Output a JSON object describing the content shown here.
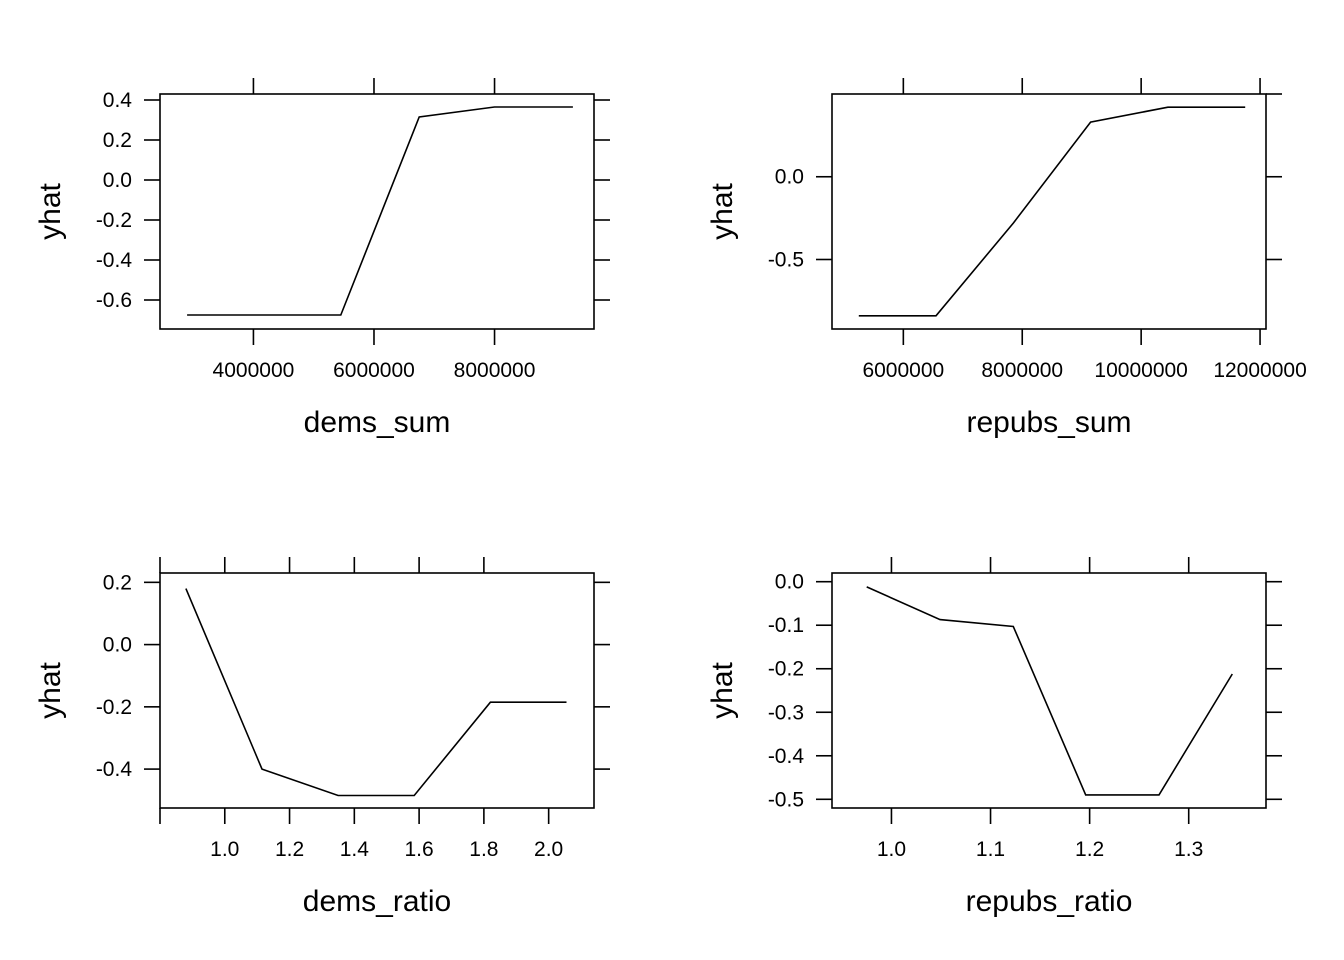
{
  "chart_data": [
    {
      "type": "line",
      "xlabel": "dems_sum",
      "ylabel": "yhat",
      "x": [
        2900000,
        4150000,
        5450000,
        6750000,
        8000000,
        9300000
      ],
      "y": [
        -0.675,
        -0.675,
        -0.675,
        0.315,
        0.365,
        0.365
      ],
      "xlim": [
        2450000,
        9650000
      ],
      "ylim": [
        -0.745,
        0.43
      ],
      "xticks": [
        4000000,
        6000000,
        8000000
      ],
      "xtick_labels": [
        "4000000",
        "6000000",
        "8000000"
      ],
      "xticks_top": [
        4000000,
        6000000,
        8000000
      ],
      "yticks": [
        -0.6,
        -0.4,
        -0.2,
        0.0,
        0.2,
        0.4
      ],
      "ytick_labels": [
        "-0.6",
        "-0.4",
        "-0.2",
        "0.0",
        "0.2",
        "0.4"
      ],
      "grid": false
    },
    {
      "type": "line",
      "xlabel": "repubs_sum",
      "ylabel": "yhat",
      "x": [
        5250000,
        6550000,
        7850000,
        9150000,
        10450000,
        11750000
      ],
      "y": [
        -0.84,
        -0.84,
        -0.28,
        0.33,
        0.42,
        0.42
      ],
      "xlim": [
        4800000,
        12100000
      ],
      "ylim": [
        -0.92,
        0.5
      ],
      "xticks": [
        6000000,
        8000000,
        10000000,
        12000000
      ],
      "xtick_labels": [
        "6000000",
        "8000000",
        "10000000",
        "12000000"
      ],
      "xticks_top": [
        6000000,
        8000000,
        10000000,
        12000000
      ],
      "yticks": [
        -0.5,
        0.0
      ],
      "ytick_labels": [
        "-0.5",
        "0.0"
      ],
      "yticks_right": [
        -0.5,
        0.0,
        0.5
      ],
      "grid": false
    },
    {
      "type": "line",
      "xlabel": "dems_ratio",
      "ylabel": "yhat",
      "x": [
        0.88,
        1.115,
        1.35,
        1.585,
        1.82,
        2.055
      ],
      "y": [
        0.18,
        -0.4,
        -0.485,
        -0.485,
        -0.185,
        -0.185
      ],
      "xlim": [
        0.8,
        2.14
      ],
      "ylim": [
        -0.525,
        0.23
      ],
      "xticks": [
        1.0,
        1.2,
        1.4,
        1.6,
        1.8,
        2.0
      ],
      "xtick_labels": [
        "1.0",
        "1.2",
        "1.4",
        "1.6",
        "1.8",
        "2.0"
      ],
      "xticks_top": [
        0.8,
        1.0,
        1.2,
        1.4,
        1.6,
        1.8
      ],
      "xticks_bottom_extra": [
        0.8
      ],
      "yticks": [
        -0.4,
        -0.2,
        0.0,
        0.2
      ],
      "ytick_labels": [
        "-0.4",
        "-0.2",
        "0.0",
        "0.2"
      ],
      "grid": false
    },
    {
      "type": "line",
      "xlabel": "repubs_ratio",
      "ylabel": "yhat",
      "x": [
        0.975,
        1.049,
        1.123,
        1.196,
        1.27,
        1.344
      ],
      "y": [
        -0.012,
        -0.087,
        -0.103,
        -0.49,
        -0.49,
        -0.212
      ],
      "xlim": [
        0.94,
        1.378
      ],
      "ylim": [
        -0.52,
        0.02
      ],
      "xticks": [
        1.0,
        1.1,
        1.2,
        1.3
      ],
      "xtick_labels": [
        "1.0",
        "1.1",
        "1.2",
        "1.3"
      ],
      "xticks_top": [
        1.0,
        1.1,
        1.2,
        1.3
      ],
      "yticks": [
        -0.5,
        -0.4,
        -0.3,
        -0.2,
        -0.1,
        0.0
      ],
      "ytick_labels": [
        "-0.5",
        "-0.4",
        "-0.3",
        "-0.2",
        "-0.1",
        "0.0"
      ],
      "grid": false
    }
  ]
}
